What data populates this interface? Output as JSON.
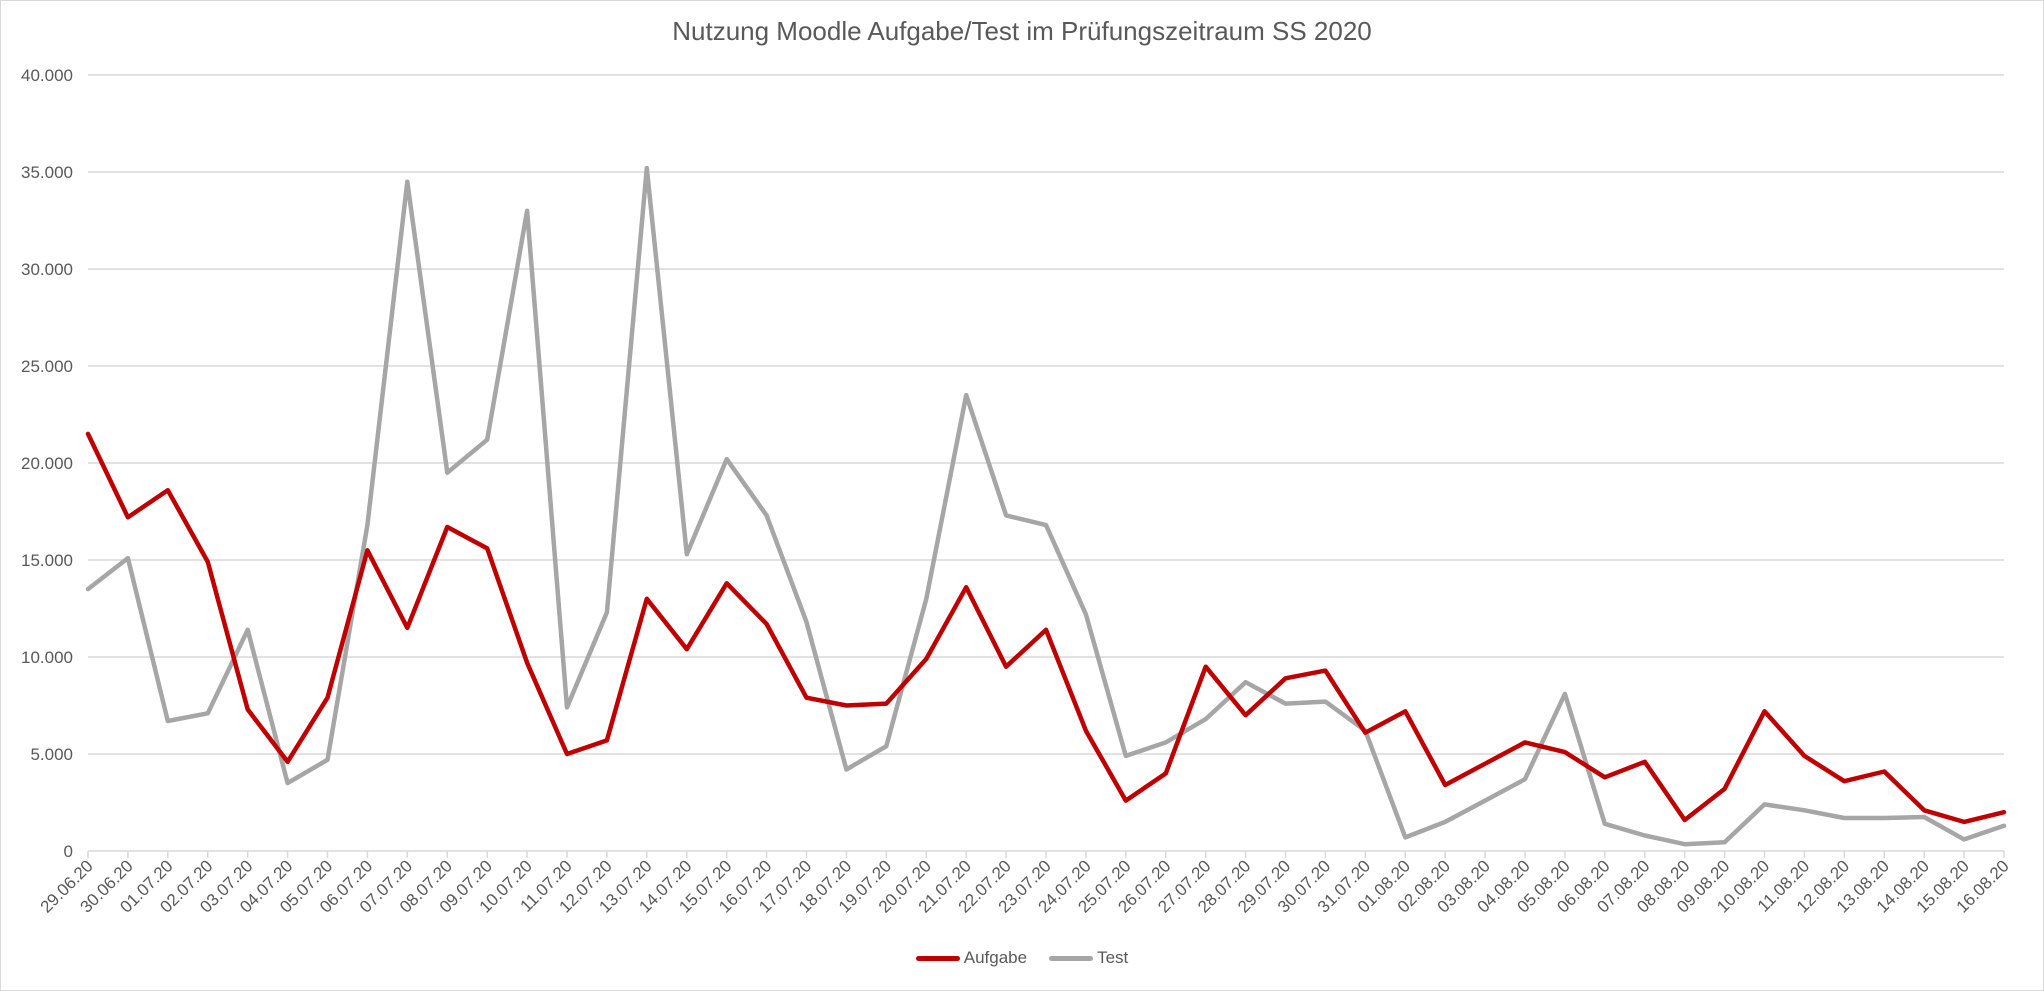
{
  "chart_data": {
    "type": "line",
    "title": "Nutzung Moodle Aufgabe/Test im Prüfungszeitraum SS 2020",
    "xlabel": "",
    "ylabel": "",
    "ylim": [
      0,
      40000
    ],
    "yticks": [
      "0",
      "5.000",
      "10.000",
      "15.000",
      "20.000",
      "25.000",
      "30.000",
      "35.000",
      "40.000"
    ],
    "grid": true,
    "legend_position": "bottom",
    "categories": [
      "29.06.20",
      "30.06.20",
      "01.07.20",
      "02.07.20",
      "03.07.20",
      "04.07.20",
      "05.07.20",
      "06.07.20",
      "07.07.20",
      "08.07.20",
      "09.07.20",
      "10.07.20",
      "11.07.20",
      "12.07.20",
      "13.07.20",
      "14.07.20",
      "15.07.20",
      "16.07.20",
      "17.07.20",
      "18.07.20",
      "19.07.20",
      "20.07.20",
      "21.07.20",
      "22.07.20",
      "23.07.20",
      "24.07.20",
      "25.07.20",
      "26.07.20",
      "27.07.20",
      "28.07.20",
      "29.07.20",
      "30.07.20",
      "31.07.20",
      "01.08.20",
      "02.08.20",
      "03.08.20",
      "04.08.20",
      "05.08.20",
      "06.08.20",
      "07.08.20",
      "08.08.20",
      "09.08.20",
      "10.08.20",
      "11.08.20",
      "12.08.20",
      "13.08.20",
      "14.08.20",
      "15.08.20",
      "16.08.20"
    ],
    "series": [
      {
        "name": "Aufgabe",
        "color": "#c00000",
        "values": [
          21500,
          17200,
          18600,
          14900,
          7300,
          4600,
          7900,
          15500,
          11500,
          16700,
          15600,
          9700,
          5000,
          5700,
          13000,
          10400,
          13800,
          11700,
          7900,
          7500,
          7600,
          9900,
          13600,
          9500,
          11400,
          6200,
          2600,
          4000,
          9500,
          7000,
          8900,
          9300,
          6100,
          7200,
          3400,
          4500,
          5600,
          5100,
          3800,
          4600,
          1600,
          3200,
          7200,
          4900,
          3600,
          4100,
          2100,
          1500,
          2000
        ]
      },
      {
        "name": "Test",
        "color": "#a6a6a6",
        "values": [
          13500,
          15100,
          6700,
          7100,
          11400,
          3500,
          4700,
          16800,
          34500,
          19500,
          21200,
          33000,
          7400,
          12300,
          35200,
          15300,
          20200,
          17300,
          11800,
          4200,
          5400,
          13000,
          23500,
          17300,
          16800,
          12200,
          4900,
          5600,
          6800,
          8700,
          7600,
          7700,
          6200,
          700,
          1500,
          2600,
          3700,
          8100,
          1400,
          800,
          350,
          450,
          2400,
          2100,
          1700,
          1700,
          1750,
          600,
          1300
        ]
      }
    ]
  },
  "legend": {
    "items": [
      {
        "label": "Aufgabe",
        "color": "#c00000"
      },
      {
        "label": "Test",
        "color": "#a6a6a6"
      }
    ]
  }
}
